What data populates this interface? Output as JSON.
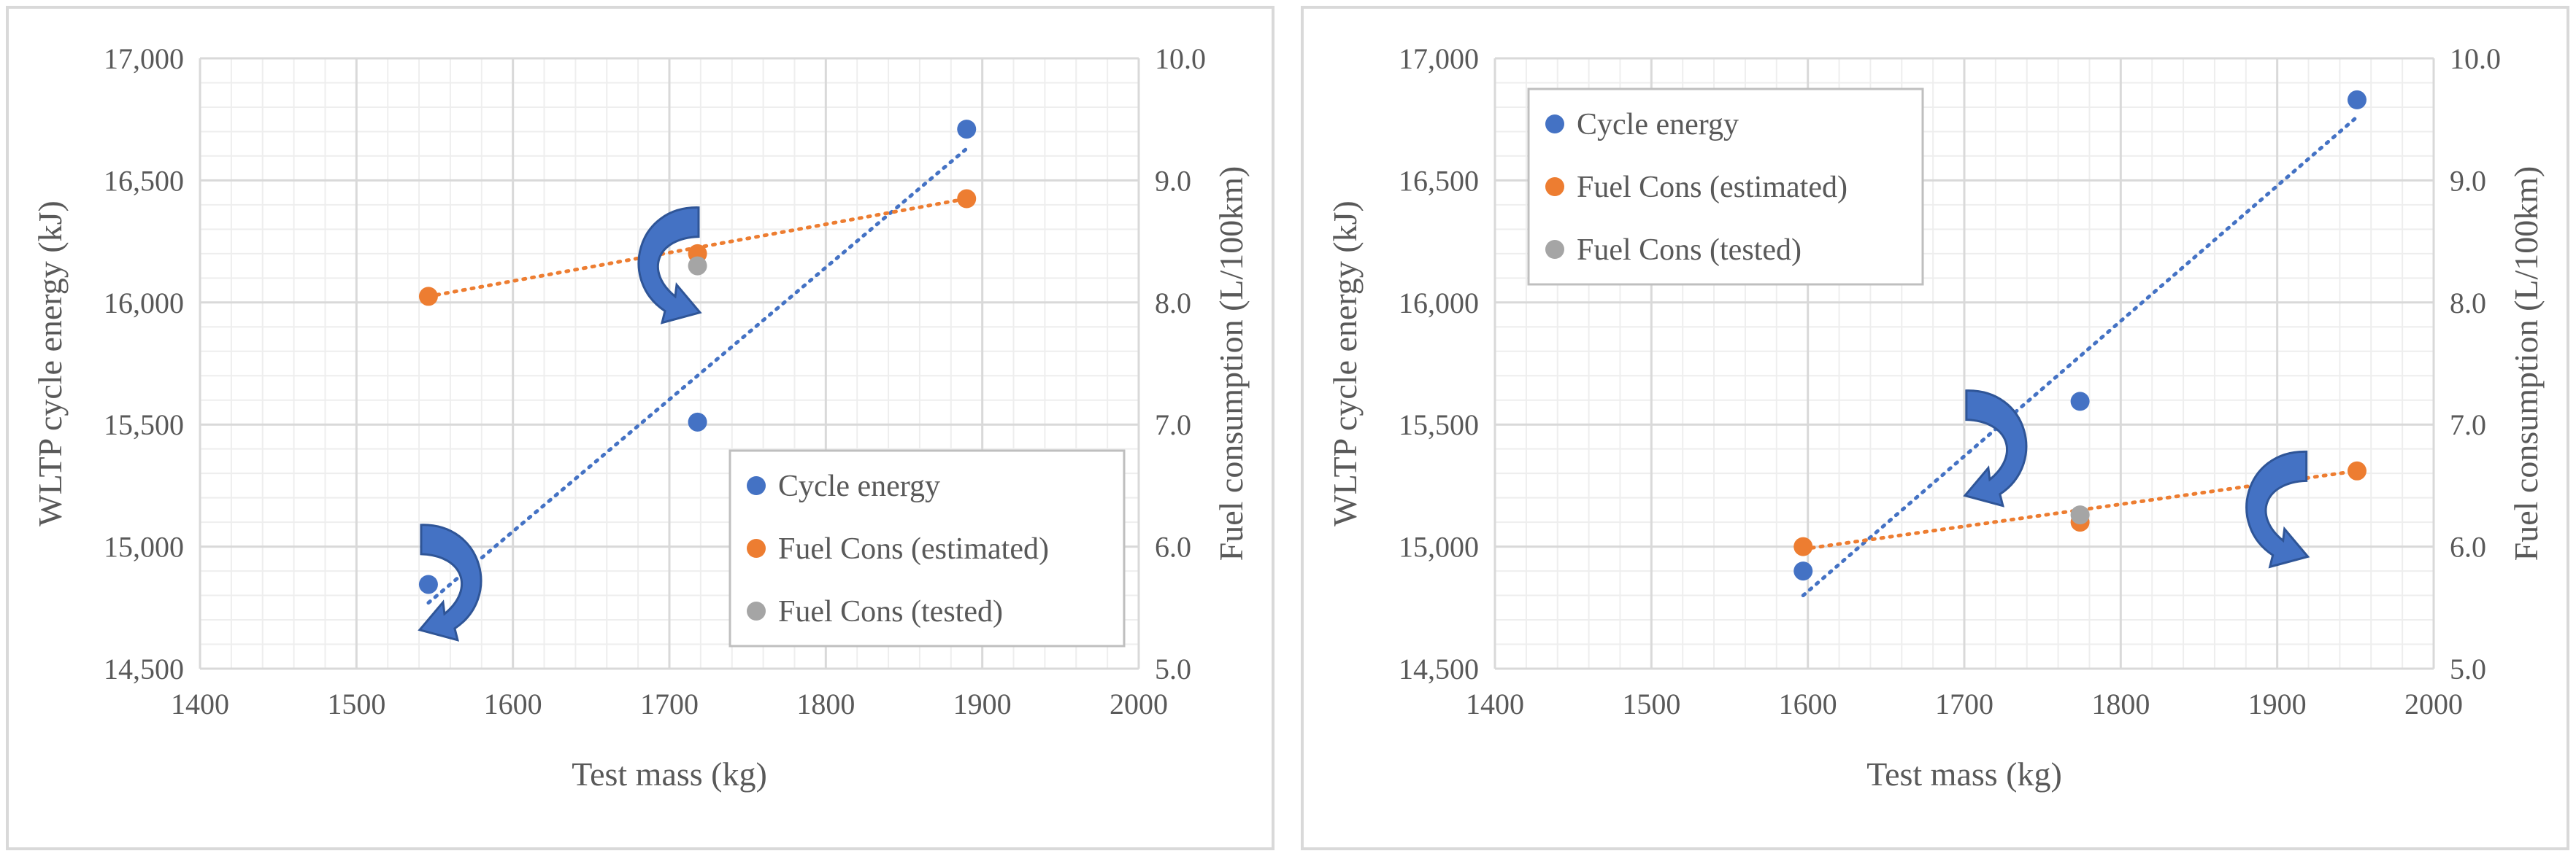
{
  "colors": {
    "cycle_energy": "#4472c4",
    "fuel_estimated": "#ed7d31",
    "fuel_tested": "#a5a5a5",
    "arrow": "#4472c4",
    "grid_major": "#d9d9d9",
    "grid_minor": "#eeeeee"
  },
  "chart_data": [
    {
      "type": "scatter",
      "xlabel": "Test mass (kg)",
      "ylabel": "WLTP cycle energy (kJ)",
      "y2label": "Fuel consumption (L/100km)",
      "xlim": [
        1400,
        2000
      ],
      "ylim": [
        14500,
        17000
      ],
      "y2lim": [
        5.0,
        10.0
      ],
      "x_ticks": [
        "1400",
        "1500",
        "1600",
        "1700",
        "1800",
        "1900",
        "2000"
      ],
      "y_ticks": [
        "17,000",
        "16,500",
        "16,000",
        "15,500",
        "15,000",
        "14,500"
      ],
      "y2_ticks": [
        "10.0",
        "9.0",
        "8.0",
        "7.0",
        "6.0",
        "5.0"
      ],
      "legend_position": "bottom-right",
      "series": [
        {
          "name": "Cycle energy",
          "axis": "left",
          "color_key": "cycle_energy",
          "x": [
            1546,
            1718,
            1890
          ],
          "y": [
            14845,
            15510,
            16710
          ],
          "trendline": {
            "x": [
              1546,
              1890
            ],
            "y": [
              14770,
              16630
            ]
          }
        },
        {
          "name": "Fuel Cons (estimated)",
          "axis": "right",
          "color_key": "fuel_estimated",
          "x": [
            1546,
            1718,
            1890
          ],
          "y": [
            8.05,
            8.4,
            8.85
          ],
          "trendline": {
            "x": [
              1546,
              1890
            ],
            "y": [
              8.05,
              8.85
            ]
          }
        },
        {
          "name": "Fuel Cons (tested)",
          "axis": "right",
          "color_key": "fuel_tested",
          "x": [
            1718
          ],
          "y": [
            8.3
          ]
        }
      ],
      "arrows": [
        {
          "direction": "down-right",
          "x": 1700,
          "y": 16150
        },
        {
          "direction": "down-left",
          "x": 1560,
          "y": 14850
        }
      ]
    },
    {
      "type": "scatter",
      "xlabel": "Test mass (kg)",
      "ylabel": "WLTP cycle energy (kJ)",
      "y2label": "Fuel consumption (L/100km)",
      "xlim": [
        1400,
        2000
      ],
      "ylim": [
        14500,
        17000
      ],
      "y2lim": [
        5.0,
        10.0
      ],
      "x_ticks": [
        "1400",
        "1500",
        "1600",
        "1700",
        "1800",
        "1900",
        "2000"
      ],
      "y_ticks": [
        "17,000",
        "16,500",
        "16,000",
        "15,500",
        "15,000",
        "14,500"
      ],
      "y2_ticks": [
        "10.0",
        "9.0",
        "8.0",
        "7.0",
        "6.0",
        "5.0"
      ],
      "legend_position": "top-left",
      "series": [
        {
          "name": "Cycle energy",
          "axis": "left",
          "color_key": "cycle_energy",
          "x": [
            1597,
            1774,
            1951
          ],
          "y": [
            14900,
            15595,
            16830
          ],
          "trendline": {
            "x": [
              1597,
              1951
            ],
            "y": [
              14800,
              16760
            ]
          }
        },
        {
          "name": "Fuel Cons (estimated)",
          "axis": "right",
          "color_key": "fuel_estimated",
          "x": [
            1597,
            1774,
            1951
          ],
          "y": [
            6.0,
            6.2,
            6.62
          ],
          "trendline": {
            "x": [
              1597,
              1951
            ],
            "y": [
              5.98,
              6.62
            ]
          }
        },
        {
          "name": "Fuel Cons (tested)",
          "axis": "right",
          "color_key": "fuel_tested",
          "x": [
            1774
          ],
          "y": [
            6.26
          ]
        }
      ],
      "arrows": [
        {
          "direction": "down-left",
          "x": 1720,
          "y": 15400
        },
        {
          "direction": "down-right",
          "x": 1900,
          "y": 15150
        }
      ]
    }
  ]
}
